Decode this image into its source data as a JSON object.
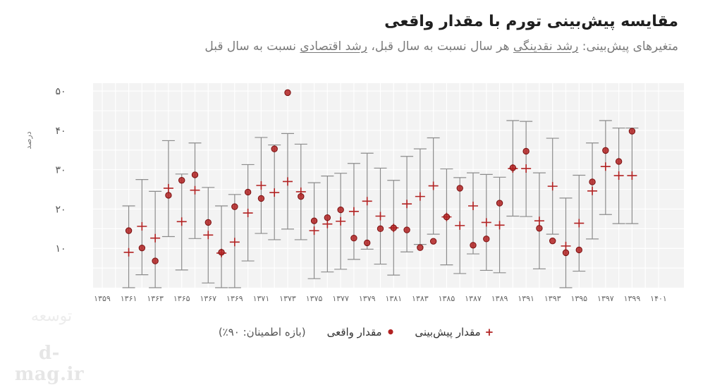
{
  "header": {
    "title": "مقایسه پیش‌بینی تورم با مقدار واقعی",
    "subtitle_prefix": "متغیرهای پیش‌بینی: ",
    "subtitle_var1": "رشد نقدینگی",
    "subtitle_mid": " هر سال نسبت به سال قبل، ",
    "subtitle_var2": "رشد اقتصادی",
    "subtitle_suffix": " نسبت به سال قبل"
  },
  "legend": {
    "predicted_symbol": "+",
    "predicted_label": "مقدار پیش‌بینی",
    "actual_symbol": "•",
    "actual_label": "مقدار واقعی",
    "interval_note": "(بازه اطمینان: ۹۰٪)"
  },
  "logo": {
    "mark": "توسعه",
    "text": "d-mag.ir"
  },
  "colors": {
    "background": "#ffffff",
    "plot_background": "#f3f3f3",
    "grid": "#ffffff",
    "error_bar": "#8c8c8c",
    "actual": "#b22222",
    "predicted": "#b22222"
  },
  "chart_data": {
    "type": "scatter",
    "ylabel": "درصد",
    "xlabel": "",
    "ylim": [
      0,
      52
    ],
    "yticks": [
      10,
      20,
      30,
      40,
      50
    ],
    "ytick_labels": [
      "۱۰",
      "۲۰",
      "۳۰",
      "۴۰",
      "۵۰"
    ],
    "xlim": [
      1359,
      1401
    ],
    "xticks": [
      1359,
      1361,
      1363,
      1365,
      1367,
      1369,
      1371,
      1373,
      1375,
      1377,
      1379,
      1381,
      1383,
      1385,
      1387,
      1389,
      1391,
      1393,
      1395,
      1397,
      1399,
      1401
    ],
    "xtick_labels": [
      "۱۳۵۹",
      "۱۳۶۱",
      "۱۳۶۳",
      "۱۳۶۵",
      "۱۳۶۷",
      "۱۳۶۹",
      "۱۳۷۱",
      "۱۳۷۳",
      "۱۳۷۵",
      "۱۳۷۷",
      "۱۳۷۹",
      "۱۳۸۱",
      "۱۳۸۳",
      "۱۳۸۵",
      "۱۳۸۷",
      "۱۳۸۹",
      "۱۳۹۱",
      "۱۳۹۳",
      "۱۳۹۵",
      "۱۳۹۷",
      "۱۳۹۹",
      "۱۴۰۱"
    ],
    "grid": true,
    "legend_position": "bottom",
    "series": [
      {
        "name": "مقدار واقعی",
        "marker": "circle"
      },
      {
        "name": "مقدار پیش‌بینی",
        "marker": "plus"
      }
    ],
    "points": [
      {
        "year": 1361,
        "actual": 14.5,
        "predicted": 9.0,
        "lower": -2.0,
        "upper": 20.8
      },
      {
        "year": 1362,
        "actual": 10.1,
        "predicted": 15.6,
        "lower": 3.3,
        "upper": 27.5
      },
      {
        "year": 1363,
        "actual": 6.8,
        "predicted": 12.6,
        "lower": 0.0,
        "upper": 24.5
      },
      {
        "year": 1364,
        "actual": 23.5,
        "predicted": 25.3,
        "lower": 13.0,
        "upper": 37.4
      },
      {
        "year": 1365,
        "actual": 27.3,
        "predicted": 16.8,
        "lower": 4.5,
        "upper": 28.9
      },
      {
        "year": 1366,
        "actual": 28.7,
        "predicted": 24.8,
        "lower": 12.5,
        "upper": 36.8
      },
      {
        "year": 1367,
        "actual": 16.6,
        "predicted": 13.4,
        "lower": 1.2,
        "upper": 25.5
      },
      {
        "year": 1368,
        "actual": 9.0,
        "predicted": 8.8,
        "lower": -3.3,
        "upper": 20.8
      },
      {
        "year": 1369,
        "actual": 20.6,
        "predicted": 11.6,
        "lower": -0.5,
        "upper": 23.7
      },
      {
        "year": 1370,
        "actual": 24.3,
        "predicted": 19.0,
        "lower": 6.8,
        "upper": 31.3
      },
      {
        "year": 1371,
        "actual": 22.7,
        "predicted": 26.0,
        "lower": 13.8,
        "upper": 38.2
      },
      {
        "year": 1372,
        "actual": 35.3,
        "predicted": 24.2,
        "lower": 12.2,
        "upper": 36.3
      },
      {
        "year": 1373,
        "actual": 49.6,
        "predicted": 27.0,
        "lower": 14.9,
        "upper": 39.2
      },
      {
        "year": 1374,
        "actual": 23.2,
        "predicted": 24.4,
        "lower": 12.2,
        "upper": 36.5
      },
      {
        "year": 1375,
        "actual": 17.0,
        "predicted": 14.5,
        "lower": 2.3,
        "upper": 26.7
      },
      {
        "year": 1376,
        "actual": 17.8,
        "predicted": 16.2,
        "lower": 4.0,
        "upper": 28.4
      },
      {
        "year": 1377,
        "actual": 19.8,
        "predicted": 16.9,
        "lower": 4.7,
        "upper": 29.1
      },
      {
        "year": 1378,
        "actual": 12.6,
        "predicted": 19.4,
        "lower": 7.2,
        "upper": 31.6
      },
      {
        "year": 1379,
        "actual": 11.4,
        "predicted": 22.0,
        "lower": 9.8,
        "upper": 34.2
      },
      {
        "year": 1380,
        "actual": 15.0,
        "predicted": 18.2,
        "lower": 6.0,
        "upper": 30.4
      },
      {
        "year": 1381,
        "actual": 15.2,
        "predicted": 15.2,
        "lower": 3.2,
        "upper": 27.3
      },
      {
        "year": 1382,
        "actual": 14.7,
        "predicted": 21.3,
        "lower": 9.1,
        "upper": 33.4
      },
      {
        "year": 1383,
        "actual": 10.2,
        "predicted": 23.2,
        "lower": 11.0,
        "upper": 35.3
      },
      {
        "year": 1384,
        "actual": 11.8,
        "predicted": 25.9,
        "lower": 13.6,
        "upper": 38.1
      },
      {
        "year": 1385,
        "actual": 18.0,
        "predicted": 18.0,
        "lower": 5.8,
        "upper": 30.2
      },
      {
        "year": 1386,
        "actual": 25.3,
        "predicted": 15.8,
        "lower": 3.6,
        "upper": 28.0
      },
      {
        "year": 1387,
        "actual": 10.8,
        "predicted": 20.8,
        "lower": 8.6,
        "upper": 29.2
      },
      {
        "year": 1388,
        "actual": 12.4,
        "predicted": 16.6,
        "lower": 4.4,
        "upper": 28.8
      },
      {
        "year": 1389,
        "actual": 21.5,
        "predicted": 15.9,
        "lower": 3.8,
        "upper": 28.1
      },
      {
        "year": 1390,
        "actual": 30.5,
        "predicted": 30.3,
        "lower": 18.2,
        "upper": 42.5
      },
      {
        "year": 1391,
        "actual": 34.7,
        "predicted": 30.3,
        "lower": 18.1,
        "upper": 42.3
      },
      {
        "year": 1392,
        "actual": 15.1,
        "predicted": 17.0,
        "lower": 4.8,
        "upper": 29.2
      },
      {
        "year": 1393,
        "actual": 11.9,
        "predicted": 25.8,
        "lower": 13.6,
        "upper": 38.0
      },
      {
        "year": 1394,
        "actual": 8.9,
        "predicted": 10.6,
        "lower": -1.6,
        "upper": 22.8
      },
      {
        "year": 1395,
        "actual": 9.6,
        "predicted": 16.4,
        "lower": 4.2,
        "upper": 28.6
      },
      {
        "year": 1396,
        "actual": 26.9,
        "predicted": 24.6,
        "lower": 12.4,
        "upper": 36.8
      },
      {
        "year": 1397,
        "actual": 34.9,
        "predicted": 30.8,
        "lower": 18.6,
        "upper": 42.5
      },
      {
        "year": 1398,
        "actual": 32.1,
        "predicted": 28.5,
        "lower": 16.3,
        "upper": 40.6
      },
      {
        "year": 1399,
        "actual": 39.8,
        "predicted": 28.5,
        "lower": 16.3,
        "upper": 40.6
      }
    ]
  }
}
